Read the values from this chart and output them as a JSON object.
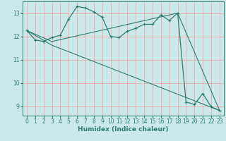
{
  "xlabel": "Humidex (Indice chaleur)",
  "xlim": [
    -0.5,
    23.5
  ],
  "ylim": [
    8.6,
    13.5
  ],
  "yticks": [
    9,
    10,
    11,
    12,
    13
  ],
  "xticks": [
    0,
    1,
    2,
    3,
    4,
    5,
    6,
    7,
    8,
    9,
    10,
    11,
    12,
    13,
    14,
    15,
    16,
    17,
    18,
    19,
    20,
    21,
    22,
    23
  ],
  "background_color": "#cbe9e9",
  "line_color": "#2e7d6e",
  "grid_color_v": "#f0a0a0",
  "grid_color_h": "#f0a0a0",
  "line1_x": [
    0,
    1,
    2,
    3,
    4,
    5,
    6,
    7,
    8,
    9,
    10,
    11,
    12,
    13,
    14,
    15,
    16,
    17,
    18,
    19,
    20,
    21,
    22,
    23
  ],
  "line1_y": [
    12.25,
    11.85,
    11.78,
    11.95,
    12.05,
    12.75,
    13.28,
    13.22,
    13.05,
    12.82,
    12.0,
    11.95,
    12.22,
    12.35,
    12.52,
    12.52,
    12.92,
    12.68,
    13.0,
    9.18,
    9.08,
    9.55,
    8.98,
    8.82
  ],
  "line2_x": [
    0,
    3,
    18,
    23
  ],
  "line2_y": [
    12.25,
    11.78,
    13.0,
    8.82
  ],
  "line3_x": [
    0,
    3,
    23
  ],
  "line3_y": [
    12.25,
    11.62,
    8.82
  ]
}
